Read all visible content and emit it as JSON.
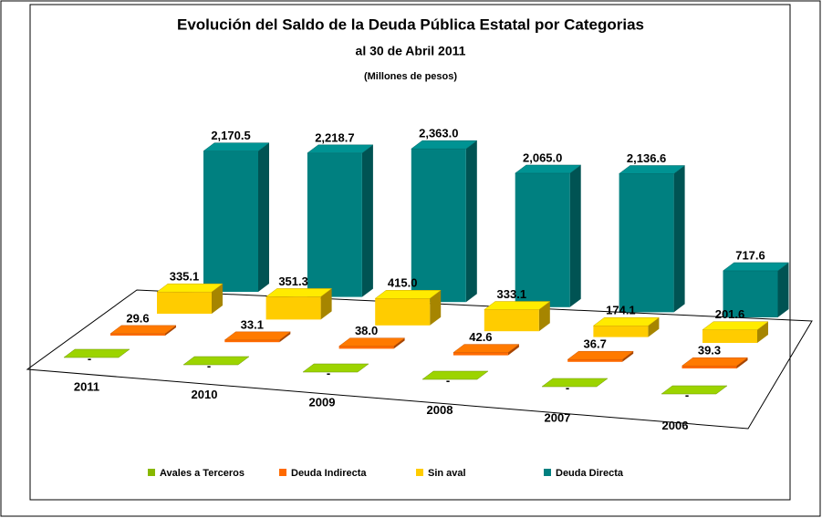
{
  "chart_data": {
    "type": "bar3d",
    "title": "Evolución del Saldo de la Deuda Pública Estatal por Categorias",
    "subtitle": "al 30 de Abril 2011",
    "unit_note": "(Millones de pesos)",
    "categories": [
      "2011",
      "2010",
      "2009",
      "2008",
      "2007",
      "2006"
    ],
    "legend": "bottom",
    "series": [
      {
        "name": "Avales a Terceros",
        "color": "#88b800",
        "values": [
          0,
          0,
          0,
          0,
          0,
          0
        ],
        "value_labels": [
          "-",
          "-",
          "-",
          "-",
          "-",
          "-"
        ]
      },
      {
        "name": "Deuda Indirecta",
        "color": "#ff6a00",
        "values": [
          29.6,
          33.1,
          38.0,
          42.6,
          36.7,
          39.3
        ],
        "value_labels": [
          "29.6",
          "33.1",
          "38.0",
          "42.6",
          "36.7",
          "39.3"
        ]
      },
      {
        "name": "Sin aval",
        "color": "#ffcc00",
        "values": [
          335.1,
          351.3,
          415.0,
          333.1,
          174.1,
          201.6
        ],
        "value_labels": [
          "335.1",
          "351.3",
          "415.0",
          "333.1",
          "174.1",
          "201.6"
        ]
      },
      {
        "name": "Deuda Directa",
        "color": "#008080",
        "values": [
          2170.5,
          2218.7,
          2363.0,
          2065.0,
          2136.6,
          717.6
        ],
        "value_labels": [
          "2,170.5",
          "2,218.7",
          "2,363.0",
          "2,065.0",
          "2,136.6",
          "717.6"
        ]
      }
    ]
  }
}
